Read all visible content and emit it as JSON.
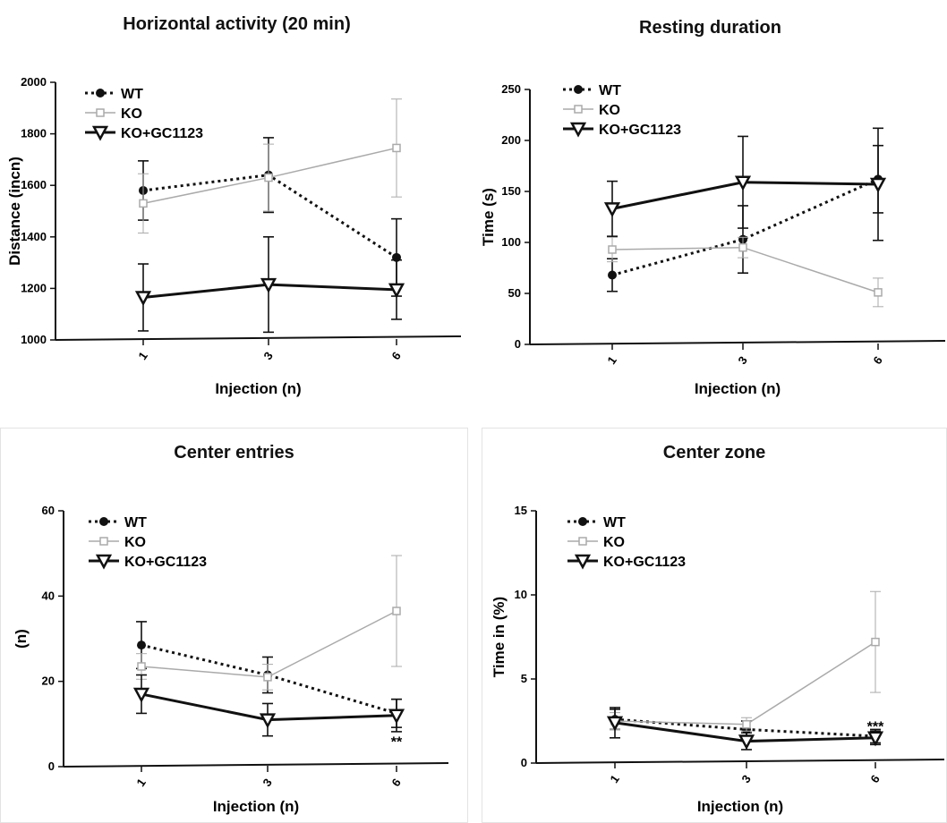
{
  "chart_data": [
    {
      "type": "line",
      "title": "Horizontal activity (20 min)",
      "xlabel": "Injection (n)",
      "ylabel": "Distance (incn)",
      "categories": [
        "1",
        "3",
        "6"
      ],
      "ylim": [
        1000,
        2000
      ],
      "yticks": [
        "1000",
        "1200",
        "1400",
        "1600",
        "1800",
        "2000"
      ],
      "legend": "top-left",
      "series": [
        {
          "name": "WT",
          "values": [
            1580,
            1640,
            1320
          ],
          "errors": [
            115,
            145,
            150
          ],
          "color": "#111111",
          "marker": "circle",
          "style": "dotted"
        },
        {
          "name": "KO",
          "values": [
            1530,
            1630,
            1745
          ],
          "errors": [
            115,
            130,
            190
          ],
          "color": "#aaaaaa",
          "marker": "square",
          "style": "thin"
        },
        {
          "name": "KO+GC1123",
          "values": [
            1165,
            1215,
            1195
          ],
          "errors": [
            130,
            185,
            115
          ],
          "color": "#111111",
          "marker": "triangle",
          "style": "thick"
        }
      ],
      "annotations": []
    },
    {
      "type": "line",
      "title": "Resting duration",
      "xlabel": "Injection (n)",
      "ylabel": "Time (s)",
      "categories": [
        "1",
        "3",
        "6"
      ],
      "ylim": [
        0,
        250
      ],
      "yticks": [
        "0",
        "50",
        "100",
        "150",
        "200",
        "250"
      ],
      "legend": "top-left",
      "series": [
        {
          "name": "WT",
          "values": [
            68,
            103,
            162
          ],
          "errors": [
            16,
            33,
            33
          ],
          "color": "#111111",
          "marker": "circle",
          "style": "dotted"
        },
        {
          "name": "KO",
          "values": [
            93,
            95,
            51
          ],
          "errors": [
            12,
            10,
            14
          ],
          "color": "#aaaaaa",
          "marker": "square",
          "style": "thin"
        },
        {
          "name": "KO+GC1123",
          "values": [
            133,
            159,
            157
          ],
          "errors": [
            27,
            45,
            55
          ],
          "color": "#111111",
          "marker": "triangle",
          "style": "thick"
        }
      ],
      "annotations": []
    },
    {
      "type": "line",
      "title": "Center entries",
      "xlabel": "Injection (n)",
      "ylabel": "(n)",
      "categories": [
        "1",
        "3",
        "6"
      ],
      "ylim": [
        0,
        60
      ],
      "yticks": [
        "0",
        "20",
        "40",
        "60"
      ],
      "legend": "top-left",
      "series": [
        {
          "name": "WT",
          "values": [
            28.5,
            21.5,
            12.5
          ],
          "errors": [
            5.5,
            4.2,
            3.3
          ],
          "color": "#111111",
          "marker": "circle",
          "style": "dotted"
        },
        {
          "name": "KO",
          "values": [
            23.5,
            21,
            36.5
          ],
          "errors": [
            3,
            3,
            13
          ],
          "color": "#aaaaaa",
          "marker": "square",
          "style": "thin"
        },
        {
          "name": "KO+GC1123",
          "values": [
            17,
            11,
            12
          ],
          "errors": [
            4.5,
            3.8,
            3.8
          ],
          "color": "#111111",
          "marker": "triangle",
          "style": "thick"
        }
      ],
      "annotations": [
        {
          "text": "**",
          "category": "6",
          "y": 6
        }
      ]
    },
    {
      "type": "line",
      "title": "Center zone",
      "xlabel": "Injection (n)",
      "ylabel": "Time in (%)",
      "categories": [
        "1",
        "3",
        "6"
      ],
      "ylim": [
        0,
        15
      ],
      "yticks": [
        "0",
        "5",
        "10",
        "15"
      ],
      "legend": "top-left",
      "series": [
        {
          "name": "WT",
          "values": [
            2.6,
            2.0,
            1.6
          ],
          "errors": [
            0.6,
            0.5,
            0.4
          ],
          "color": "#111111",
          "marker": "circle",
          "style": "dotted"
        },
        {
          "name": "KO",
          "values": [
            2.5,
            2.3,
            7.2
          ],
          "errors": [
            0.5,
            0.4,
            3.0
          ],
          "color": "#aaaaaa",
          "marker": "square",
          "style": "thin"
        },
        {
          "name": "KO+GC1123",
          "values": [
            2.4,
            1.3,
            1.5
          ],
          "errors": [
            0.9,
            0.5,
            0.4
          ],
          "color": "#111111",
          "marker": "triangle",
          "style": "thick"
        }
      ],
      "annotations": [
        {
          "text": "***",
          "category": "6",
          "y": 2.2
        }
      ]
    }
  ]
}
